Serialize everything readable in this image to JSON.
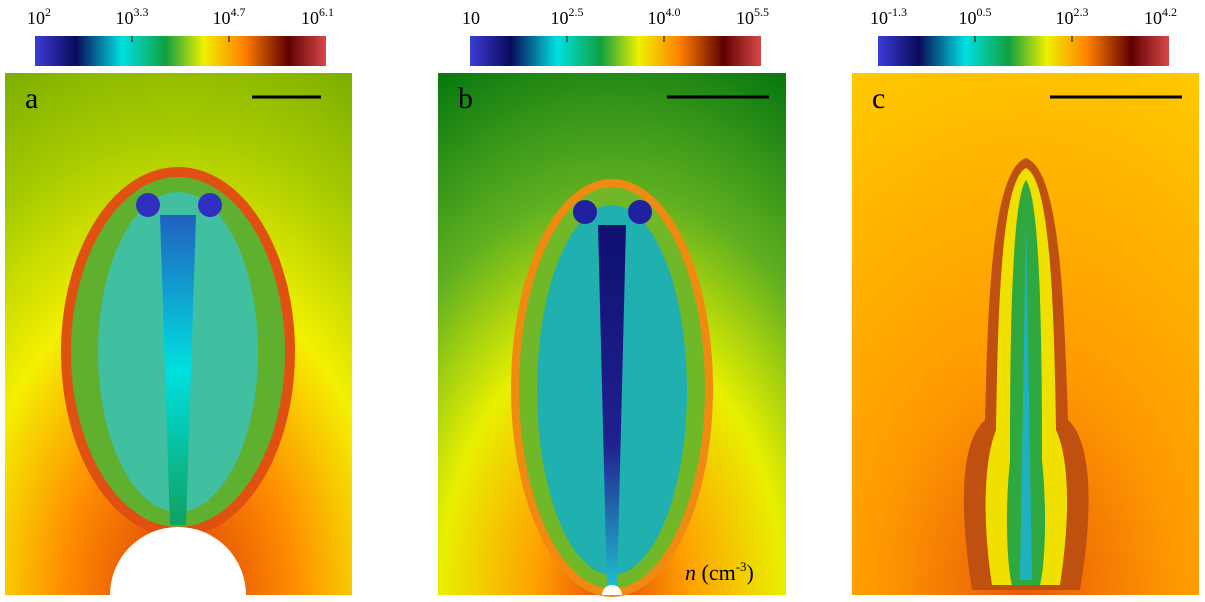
{
  "panels": [
    {
      "label": "a",
      "colorbar": {
        "ticks": [
          {
            "base": "10",
            "exp": "2"
          },
          {
            "base": "10",
            "exp": "3.3"
          },
          {
            "base": "10",
            "exp": "4.7"
          },
          {
            "base": "10",
            "exp": "6.1"
          }
        ]
      }
    },
    {
      "label": "b",
      "colorbar": {
        "ticks": [
          {
            "base": "10",
            "exp": ""
          },
          {
            "base": "10",
            "exp": "2.5"
          },
          {
            "base": "10",
            "exp": "4.0"
          },
          {
            "base": "10",
            "exp": "5.5"
          }
        ]
      }
    },
    {
      "label": "c",
      "colorbar": {
        "ticks": [
          {
            "base": "10",
            "exp": "-1.3"
          },
          {
            "base": "10",
            "exp": "0.5"
          },
          {
            "base": "10",
            "exp": "2.3"
          },
          {
            "base": "10",
            "exp": "4.2"
          }
        ]
      }
    }
  ],
  "unit": {
    "symbol": "n",
    "text": "(cm",
    "exp": "-3",
    "close": ")"
  }
}
